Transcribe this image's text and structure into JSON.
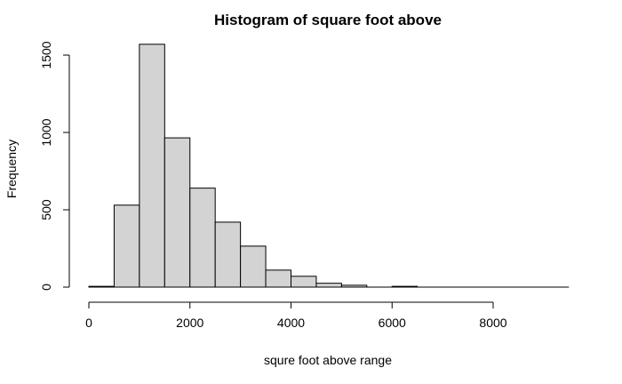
{
  "chart_data": {
    "type": "bar",
    "title": "Histogram of square foot above",
    "xlabel": "squre foot above range",
    "ylabel": "Frequency",
    "bin_edges": [
      0,
      500,
      1000,
      1500,
      2000,
      2500,
      3000,
      3500,
      4000,
      4500,
      5000,
      5500,
      6000,
      6500,
      7000,
      7500,
      8000,
      8500,
      9000,
      9500
    ],
    "values": [
      5,
      530,
      1570,
      965,
      640,
      420,
      265,
      110,
      70,
      25,
      12,
      0,
      5,
      0,
      0,
      0,
      0,
      0,
      0
    ],
    "xlim": [
      0,
      9500
    ],
    "ylim": [
      0,
      1600
    ],
    "x_ticks": [
      0,
      2000,
      4000,
      6000,
      8000
    ],
    "y_ticks": [
      0,
      500,
      1000,
      1500
    ],
    "x_tick_labels": [
      "0",
      "2000",
      "4000",
      "6000",
      "8000"
    ],
    "y_tick_labels": [
      "0",
      "500",
      "1000",
      "1500"
    ],
    "bar_color": "#d3d3d3",
    "grid": false,
    "legend": "none"
  }
}
